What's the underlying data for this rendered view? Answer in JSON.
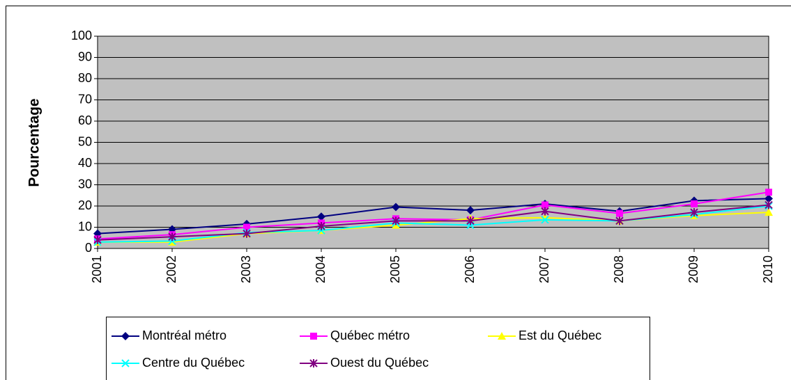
{
  "chart_data": {
    "type": "line",
    "y_label": "Pourcentage",
    "categories": [
      "2001",
      "2002",
      "2003",
      "2004",
      "2005",
      "2006",
      "2007",
      "2008",
      "2009",
      "2010"
    ],
    "series": [
      {
        "name": "Montréal métro",
        "color": "#000080",
        "marker": "diamond",
        "values": [
          7,
          9,
          11.5,
          15,
          19.5,
          18,
          21,
          17.5,
          22.5,
          23.5
        ]
      },
      {
        "name": "Québec métro",
        "color": "#ff00ff",
        "marker": "square",
        "values": [
          4.5,
          6.5,
          10,
          12,
          14,
          13.5,
          20.5,
          16.5,
          21,
          26.5
        ]
      },
      {
        "name": "Est du Québec",
        "color": "#ffff00",
        "marker": "triangle",
        "values": [
          3,
          3,
          7,
          8.5,
          11,
          14,
          14.5,
          13,
          15.5,
          17
        ]
      },
      {
        "name": "Centre du Québec",
        "color": "#00ffff",
        "marker": "x",
        "values": [
          3,
          3.5,
          7.5,
          8.5,
          12,
          11,
          13.5,
          13,
          16,
          20
        ]
      },
      {
        "name": "Ouest du Québec",
        "color": "#800080",
        "marker": "asterisk",
        "values": [
          4,
          5.5,
          7,
          10.5,
          13,
          13,
          17.5,
          13,
          17,
          20.5
        ]
      }
    ],
    "ylim": [
      0,
      100
    ],
    "yticks": [
      0,
      10,
      20,
      30,
      40,
      50,
      60,
      70,
      80,
      90,
      100
    ],
    "grid": true,
    "plot_background": "#c0c0c0",
    "legend": "bottom"
  }
}
